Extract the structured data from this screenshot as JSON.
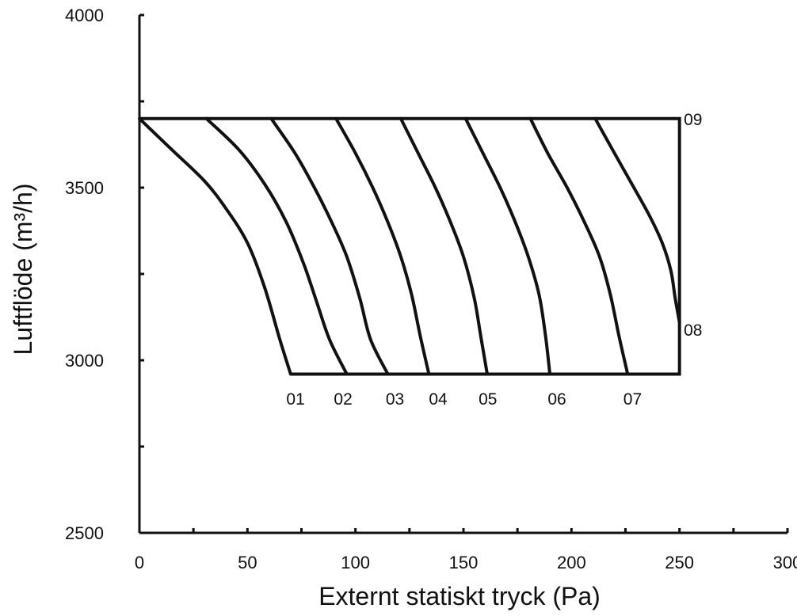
{
  "chart_data": {
    "type": "line",
    "title": "",
    "xlabel": "Externt statiskt tryck (Pa)",
    "ylabel": "Luftflöde (m³/h)",
    "xlim": [
      0,
      300
    ],
    "ylim": [
      2500,
      4000
    ],
    "x_ticks": [
      0,
      50,
      100,
      150,
      200,
      250,
      300
    ],
    "y_ticks": [
      2500,
      3000,
      3500,
      4000
    ],
    "x_minor_step": 25,
    "y_minor_step": 250,
    "grid": false,
    "legend": "none",
    "frame": {
      "points": [
        [
          0,
          3700
        ],
        [
          250,
          3700
        ],
        [
          250,
          2960
        ],
        [
          70,
          2960
        ]
      ]
    },
    "series": [
      {
        "label": "01",
        "points": [
          [
            0,
            3700
          ],
          [
            15,
            3610
          ],
          [
            30,
            3520
          ],
          [
            40,
            3440
          ],
          [
            50,
            3340
          ],
          [
            58,
            3210
          ],
          [
            65,
            3060
          ],
          [
            70,
            2960
          ]
        ]
      },
      {
        "label": "02",
        "points": [
          [
            31,
            3700
          ],
          [
            46,
            3610
          ],
          [
            58,
            3510
          ],
          [
            68,
            3400
          ],
          [
            76,
            3280
          ],
          [
            82,
            3170
          ],
          [
            88,
            3060
          ],
          [
            96,
            2960
          ]
        ]
      },
      {
        "label": "03",
        "points": [
          [
            61,
            3700
          ],
          [
            72,
            3600
          ],
          [
            81,
            3500
          ],
          [
            89,
            3400
          ],
          [
            96,
            3300
          ],
          [
            102,
            3180
          ],
          [
            107,
            3060
          ],
          [
            115,
            2960
          ]
        ]
      },
      {
        "label": "04",
        "points": [
          [
            91,
            3700
          ],
          [
            100,
            3600
          ],
          [
            108,
            3500
          ],
          [
            115,
            3400
          ],
          [
            121,
            3300
          ],
          [
            126,
            3190
          ],
          [
            130,
            3070
          ],
          [
            134,
            2960
          ]
        ]
      },
      {
        "label": "05",
        "points": [
          [
            121,
            3700
          ],
          [
            129,
            3600
          ],
          [
            137,
            3500
          ],
          [
            144,
            3400
          ],
          [
            150,
            3300
          ],
          [
            155,
            3180
          ],
          [
            158,
            3070
          ],
          [
            161,
            2960
          ]
        ]
      },
      {
        "label": "06",
        "points": [
          [
            151,
            3700
          ],
          [
            159,
            3600
          ],
          [
            167,
            3500
          ],
          [
            174,
            3400
          ],
          [
            180,
            3300
          ],
          [
            185,
            3190
          ],
          [
            188,
            3070
          ],
          [
            190,
            2960
          ]
        ]
      },
      {
        "label": "07",
        "points": [
          [
            181,
            3700
          ],
          [
            189,
            3600
          ],
          [
            198,
            3500
          ],
          [
            206,
            3400
          ],
          [
            213,
            3300
          ],
          [
            218,
            3190
          ],
          [
            222,
            3070
          ],
          [
            226,
            2960
          ]
        ]
      },
      {
        "label": "08",
        "points": [
          [
            211,
            3700
          ],
          [
            219,
            3610
          ],
          [
            228,
            3510
          ],
          [
            236,
            3420
          ],
          [
            242,
            3340
          ],
          [
            246,
            3260
          ],
          [
            248,
            3180
          ],
          [
            250,
            3110
          ]
        ]
      },
      {
        "label": "09",
        "points": []
      }
    ],
    "annotations": [
      {
        "text": "01",
        "x": 68,
        "y": 2890
      },
      {
        "text": "02",
        "x": 90,
        "y": 2890
      },
      {
        "text": "03",
        "x": 114,
        "y": 2890
      },
      {
        "text": "04",
        "x": 134,
        "y": 2890
      },
      {
        "text": "05",
        "x": 157,
        "y": 2890
      },
      {
        "text": "06",
        "x": 189,
        "y": 2890
      },
      {
        "text": "07",
        "x": 224,
        "y": 2890
      },
      {
        "text": "08",
        "x": 252,
        "y": 3090
      },
      {
        "text": "09",
        "x": 252,
        "y": 3700
      }
    ]
  }
}
